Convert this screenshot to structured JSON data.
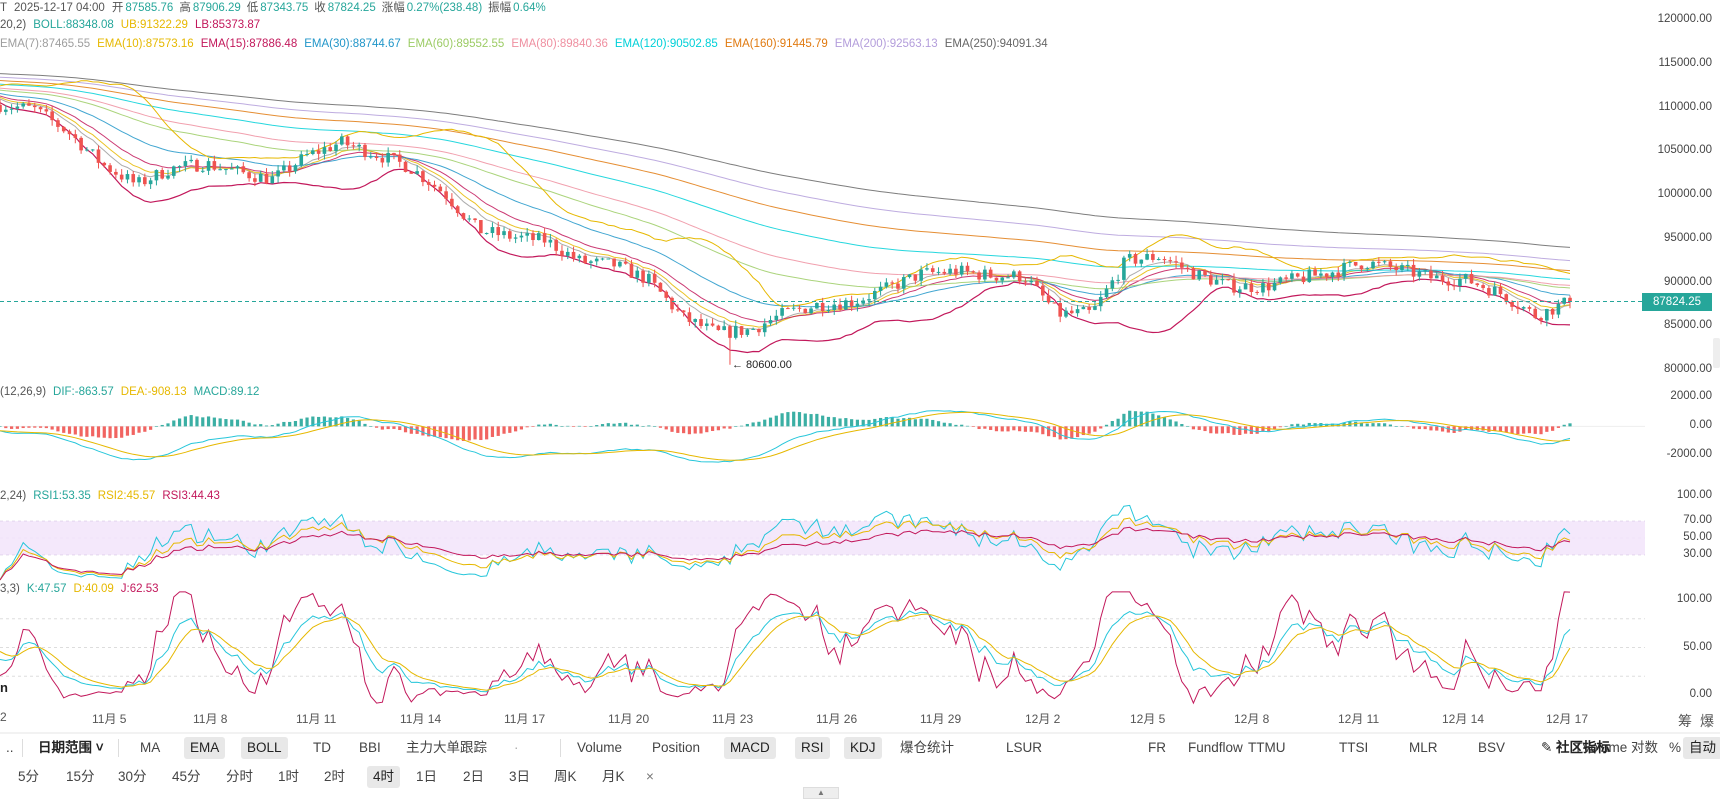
{
  "header": {
    "ohlc_prefix": "T",
    "datetime": "2025-12-17 04:00",
    "open_label": "开",
    "open": "87585.76",
    "high_label": "高",
    "high": "87906.29",
    "low_label": "低",
    "low": "87343.75",
    "close_label": "收",
    "close": "87824.25",
    "change_label": "涨幅",
    "change": "0.27%(238.48)",
    "amp_label": "振幅",
    "amp": "0.64%"
  },
  "boll": {
    "prefix": "20,2)",
    "mid": "BOLL:88348.08",
    "ub": "UB:91322.29",
    "lb": "LB:85373.87",
    "colors": {
      "mid": "#26a69a",
      "ub": "#e6b800",
      "lb": "#c2185b"
    }
  },
  "ema_legend": [
    {
      "text": "EMA(7):87465.55",
      "color": "#9e9e9e"
    },
    {
      "text": "EMA(10):87573.16",
      "color": "#e6b800"
    },
    {
      "text": "EMA(15):87886.48",
      "color": "#c2185b"
    },
    {
      "text": "EMA(30):88744.67",
      "color": "#2196c9"
    },
    {
      "text": "EMA(60):89552.55",
      "color": "#9ccc65"
    },
    {
      "text": "EMA(80):89840.36",
      "color": "#ef8fa0"
    },
    {
      "text": "EMA(120):90502.85",
      "color": "#00d0d8"
    },
    {
      "text": "EMA(160):91445.79",
      "color": "#e07a10"
    },
    {
      "text": "EMA(200):92563.13",
      "color": "#b39ddb"
    },
    {
      "text": "EMA(250):94091.34",
      "color": "#666666"
    }
  ],
  "macd_legend": {
    "prefix": "(12,26,9)",
    "dif": "DIF:-863.57",
    "dea": "DEA:-908.13",
    "macd": "MACD:89.12"
  },
  "rsi_legend": {
    "prefix": "2,24)",
    "rsi1": "RSI1:53.35",
    "rsi2": "RSI2:45.57",
    "rsi3": "RSI3:44.43"
  },
  "kdj_legend": {
    "prefix": "3,3)",
    "k": "K:47.57",
    "d": "D:40.09",
    "j": "J:62.53"
  },
  "price_axis": [
    "120000.00",
    "115000.00",
    "110000.00",
    "105000.00",
    "100000.00",
    "95000.00",
    "90000.00",
    "85000.00",
    "80000.00"
  ],
  "macd_axis": [
    "2000.00",
    "0.00",
    "-2000.00"
  ],
  "rsi_axis": [
    "100.00",
    "70.00",
    "50.00",
    "30.00"
  ],
  "kdj_axis": [
    "100.00",
    "50.00",
    "0.00"
  ],
  "last_price": "87824.25",
  "min_label": "← 80600.00",
  "corner_hint": "n",
  "x_axis": [
    "2",
    "11月 5",
    "11月 8",
    "11月 11",
    "11月 14",
    "11月 17",
    "11月 20",
    "11月 23",
    "11月 26",
    "11月 29",
    "12月 2",
    "12月 5",
    "12月 8",
    "12月 11",
    "12月 14",
    "12月 17"
  ],
  "x_right": [
    "筹",
    "爆"
  ],
  "toolbar1": {
    "lead": "..",
    "date_range": "日期范围",
    "overlays": [
      {
        "label": "MA",
        "active": false
      },
      {
        "label": "EMA",
        "active": true
      },
      {
        "label": "BOLL",
        "active": true
      },
      {
        "label": "TD",
        "active": false
      },
      {
        "label": "BBI",
        "active": false
      },
      {
        "label": "主力大单跟踪",
        "active": false
      }
    ],
    "dot": "·",
    "indicators": [
      {
        "label": "Volume",
        "active": false
      },
      {
        "label": "Position",
        "active": false
      },
      {
        "label": "MACD",
        "active": true
      },
      {
        "label": "RSI",
        "active": true
      },
      {
        "label": "KDJ",
        "active": true
      },
      {
        "label": "爆仓统计",
        "active": false
      },
      {
        "label": "LSUR",
        "active": false
      },
      {
        "label": "FR",
        "active": false
      },
      {
        "label": "Fundflow",
        "active": false
      },
      {
        "label": "TTMU",
        "active": false
      },
      {
        "label": "TTSI",
        "active": false
      },
      {
        "label": "MLR",
        "active": false
      },
      {
        "label": "BSV",
        "active": false
      },
      {
        "label": "TVolume",
        "active": false
      }
    ],
    "community": "社区指标",
    "log": "对数",
    "pct": "%",
    "auto": "自动"
  },
  "toolbar2": {
    "intervals": [
      {
        "label": "5分",
        "active": false
      },
      {
        "label": "15分",
        "active": false
      },
      {
        "label": "30分",
        "active": false
      },
      {
        "label": "45分",
        "active": false
      },
      {
        "label": "分时",
        "active": false
      },
      {
        "label": "1时",
        "active": false
      },
      {
        "label": "2时",
        "active": false
      },
      {
        "label": "4时",
        "active": true
      },
      {
        "label": "1日",
        "active": false
      },
      {
        "label": "2日",
        "active": false
      },
      {
        "label": "3日",
        "active": false
      },
      {
        "label": "周K",
        "active": false
      },
      {
        "label": "月K",
        "active": false
      }
    ],
    "close": "×"
  },
  "chart_data": {
    "type": "candlestick",
    "interval": "4h",
    "ylim": [
      80000,
      120000
    ],
    "macd_ylim": [
      -3000,
      2500
    ],
    "rsi_ylim": [
      0,
      100
    ],
    "kdj_ylim": [
      -10,
      110
    ],
    "x_start": "11月 2",
    "x_end": "12月 17",
    "close_path": [
      [
        "11-01",
        110300
      ],
      [
        "11-02",
        109800
      ],
      [
        "11-03",
        107200
      ],
      [
        "11-04",
        103500
      ],
      [
        "11-05",
        101200
      ],
      [
        "11-06",
        103000
      ],
      [
        "11-07",
        103600
      ],
      [
        "11-08",
        102600
      ],
      [
        "11-09",
        101800
      ],
      [
        "11-10",
        104500
      ],
      [
        "11-11",
        106000
      ],
      [
        "11-12",
        104700
      ],
      [
        "11-13",
        103200
      ],
      [
        "11-14",
        100300
      ],
      [
        "11-15",
        96000
      ],
      [
        "11-16",
        95200
      ],
      [
        "11-17",
        94800
      ],
      [
        "11-18",
        92400
      ],
      [
        "11-19",
        92000
      ],
      [
        "11-20",
        90300
      ],
      [
        "11-21",
        86000
      ],
      [
        "11-22",
        84200
      ],
      [
        "11-23",
        84600
      ],
      [
        "11-24",
        86500
      ],
      [
        "11-25",
        87500
      ],
      [
        "11-26",
        87800
      ],
      [
        "11-27",
        89300
      ],
      [
        "11-28",
        91000
      ],
      [
        "11-29",
        91300
      ],
      [
        "11-30",
        90800
      ],
      [
        "12-01",
        90700
      ],
      [
        "12-02",
        86400
      ],
      [
        "12-03",
        86500
      ],
      [
        "12-04",
        92500
      ],
      [
        "12-05",
        93000
      ],
      [
        "12-06",
        91000
      ],
      [
        "12-07",
        89600
      ],
      [
        "12-08",
        89500
      ],
      [
        "12-09",
        90400
      ],
      [
        "12-10",
        91200
      ],
      [
        "12-11",
        92300
      ],
      [
        "12-12",
        91500
      ],
      [
        "12-13",
        90500
      ],
      [
        "12-14",
        90300
      ],
      [
        "12-15",
        88700
      ],
      [
        "12-16",
        86200
      ],
      [
        "12-17",
        87824
      ]
    ],
    "min_low": 80600,
    "last_close": 87824.25,
    "rsi_band": [
      30,
      70
    ]
  }
}
